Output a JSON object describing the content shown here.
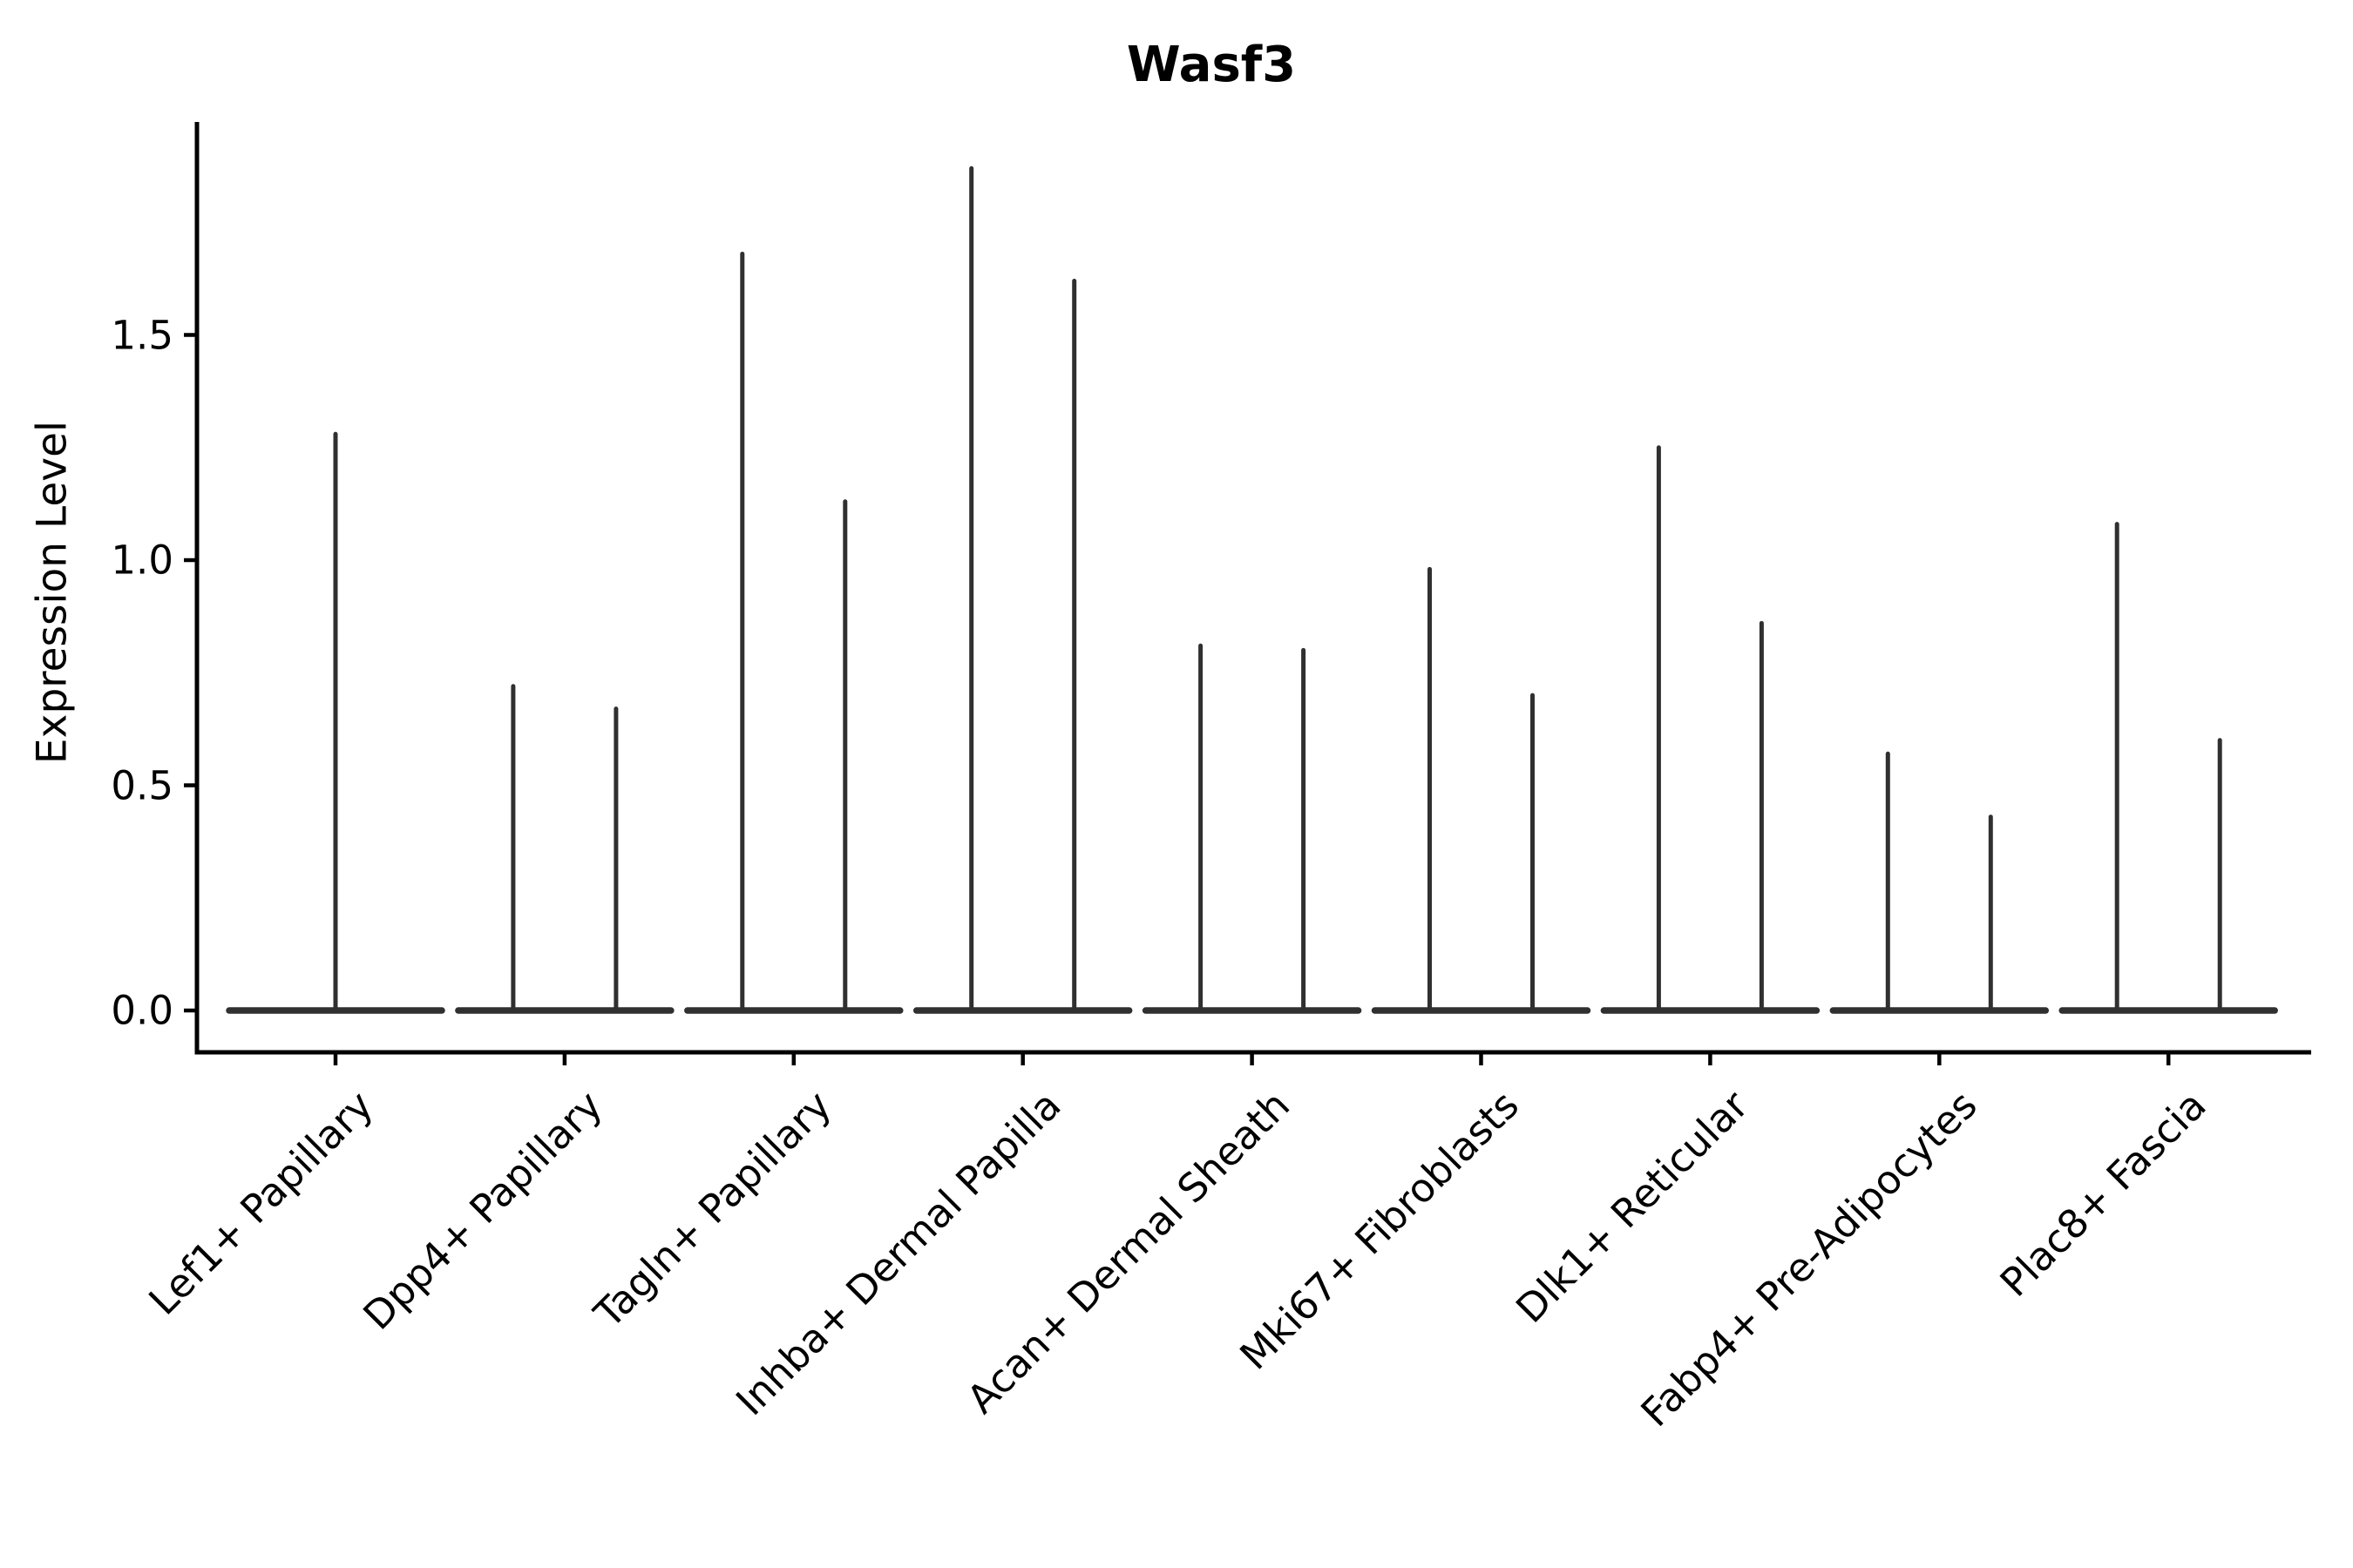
{
  "chart_data": {
    "type": "violin",
    "title": "Wasf3",
    "ylabel": "Expression Level",
    "xlabel": "",
    "ylim": [
      -0.09,
      1.97
    ],
    "yticks": [
      0.0,
      0.5,
      1.0,
      1.5
    ],
    "ytick_labels": [
      "0.0",
      "0.5",
      "1.0",
      "1.5"
    ],
    "grid": false,
    "legend": "none",
    "background": "#ffffff",
    "axis_color": "#000000",
    "violin_color": "#303030",
    "categories": [
      "Lef1+ Papillary",
      "Dpp4+ Papillary",
      "Tagln+ Papillary",
      "Inhba+ Dermal Papilla",
      "Acan+ Dermal Sheath",
      "Mki67+ Fibroblasts",
      "Dlk1+ Reticular",
      "Fabp4+ Pre-Adipocytes",
      "Plac8+ Fascia"
    ],
    "violins": [
      {
        "category": "Lef1+ Papillary",
        "baseline_value": 0.0,
        "spike_max_values": [
          1.28
        ]
      },
      {
        "category": "Dpp4+ Papillary",
        "baseline_value": 0.0,
        "spike_max_values": [
          0.72,
          0.67
        ]
      },
      {
        "category": "Tagln+ Papillary",
        "baseline_value": 0.0,
        "spike_max_values": [
          1.68,
          1.13
        ]
      },
      {
        "category": "Inhba+ Dermal Papilla",
        "baseline_value": 0.0,
        "spike_max_values": [
          1.87,
          1.62
        ]
      },
      {
        "category": "Acan+ Dermal Sheath",
        "baseline_value": 0.0,
        "spike_max_values": [
          0.81,
          0.8
        ]
      },
      {
        "category": "Mki67+ Fibroblasts",
        "baseline_value": 0.0,
        "spike_max_values": [
          0.98,
          0.7
        ]
      },
      {
        "category": "Dlk1+ Reticular",
        "baseline_value": 0.0,
        "spike_max_values": [
          1.25,
          0.86
        ]
      },
      {
        "category": "Fabp4+ Pre-Adipocytes",
        "baseline_value": 0.0,
        "spike_max_values": [
          0.57,
          0.43
        ]
      },
      {
        "category": "Plac8+ Fascia",
        "baseline_value": 0.0,
        "spike_max_values": [
          1.08,
          0.6
        ]
      }
    ]
  }
}
